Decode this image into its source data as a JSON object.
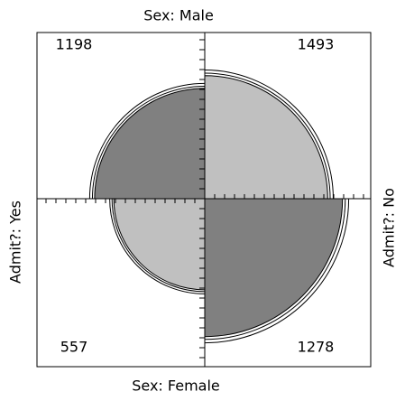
{
  "chart_data": {
    "type": "fourfold",
    "rows": [
      "Sex: Male",
      "Sex: Female"
    ],
    "columns": [
      "Admit?: Yes",
      "Admit?: No"
    ],
    "values": [
      [
        1198,
        1493
      ],
      [
        557,
        1278
      ]
    ],
    "colors": [
      [
        "#808080",
        "#c0c0c0"
      ],
      [
        "#c0c0c0",
        "#808080"
      ]
    ]
  }
}
